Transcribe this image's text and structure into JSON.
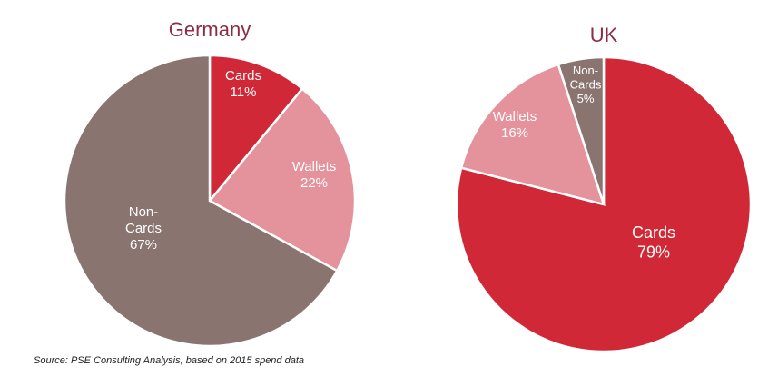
{
  "chart_data": [
    {
      "type": "pie",
      "title": "Germany",
      "start": "top",
      "direction": "clockwise",
      "slices": [
        {
          "label": "Cards",
          "value": 11,
          "text": "Cards",
          "pct": "11%",
          "color": "#D02836"
        },
        {
          "label": "Wallets",
          "value": 22,
          "text": "Wallets",
          "pct": "22%",
          "color": "#E4929C"
        },
        {
          "label": "Non-Cards",
          "value": 67,
          "text": "Non-\nCards",
          "pct": "67%",
          "color": "#8A7470"
        }
      ]
    },
    {
      "type": "pie",
      "title": "UK",
      "start": "top",
      "direction": "clockwise",
      "slices": [
        {
          "label": "Cards",
          "value": 79,
          "text": "Cards",
          "pct": "79%",
          "color": "#D02836"
        },
        {
          "label": "Wallets",
          "value": 16,
          "text": "Wallets",
          "pct": "16%",
          "color": "#E4929C"
        },
        {
          "label": "Non-Cards",
          "value": 5,
          "text": "Non-\nCards",
          "pct": "5%",
          "color": "#8A7470"
        }
      ]
    }
  ],
  "source": "Source: PSE Consulting Analysis, based on 2015 spend data"
}
